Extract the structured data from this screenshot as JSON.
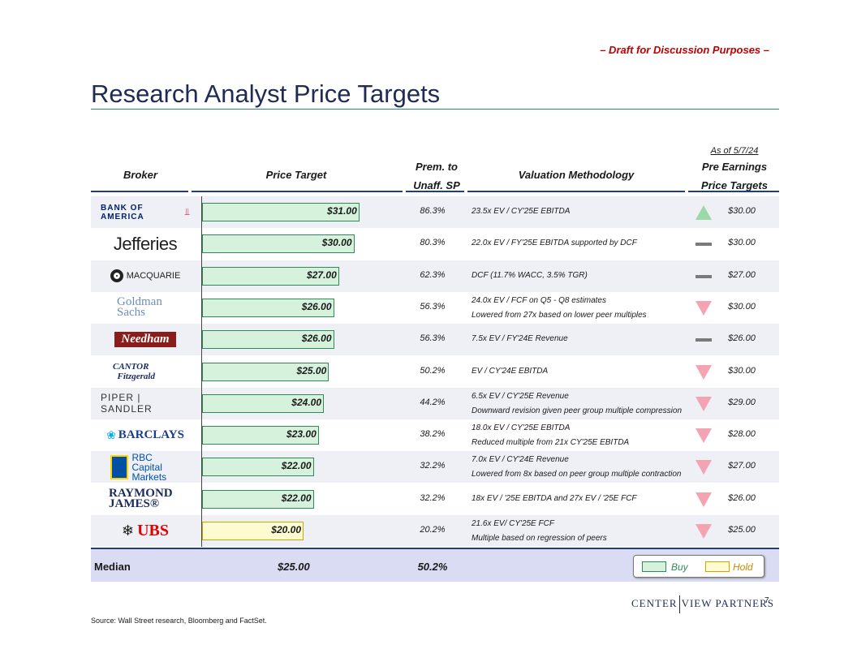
{
  "draft_note": "– Draft for Discussion Purposes –",
  "title": "Research Analyst Price Targets",
  "as_of": "As of 5/7/24",
  "headers": {
    "broker": "Broker",
    "price_target": "Price Target",
    "prem_line1": "Prem. to",
    "prem_line2": "Unaff. SP",
    "methodology": "Valuation Methodology",
    "pre_line1": "Pre Earnings",
    "pre_line2": "Price Targets"
  },
  "colors": {
    "buy_fill": "#d6f2dd",
    "buy_border": "#2e8b57",
    "hold_fill": "#fffbd1",
    "hold_border": "#c9a800",
    "up": "#9bd9a8",
    "down": "#f4a3b3",
    "flat": "#7a7a7a"
  },
  "rows": [
    {
      "broker": "BANK OF AMERICA",
      "target": "$31.00",
      "target_value": 31,
      "rating": "buy",
      "prem": "86.3%",
      "meth1": "23.5x EV / CY'25E EBITDA",
      "meth2": "",
      "change": "up",
      "pre": "$30.00"
    },
    {
      "broker": "Jefferies",
      "target": "$30.00",
      "target_value": 30,
      "rating": "buy",
      "prem": "80.3%",
      "meth1": "22.0x EV / FY'25E EBITDA supported by DCF",
      "meth2": "",
      "change": "flat",
      "pre": "$30.00"
    },
    {
      "broker": "MACQUARIE",
      "target": "$27.00",
      "target_value": 27,
      "rating": "buy",
      "prem": "62.3%",
      "meth1": "DCF (11.7% WACC, 3.5% TGR)",
      "meth2": "",
      "change": "flat",
      "pre": "$27.00"
    },
    {
      "broker": "Goldman Sachs",
      "target": "$26.00",
      "target_value": 26,
      "rating": "buy",
      "prem": "56.3%",
      "meth1": "24.0x EV / FCF on Q5 - Q8 estimates",
      "meth2": "Lowered from 27x based on lower peer multiples",
      "change": "down",
      "pre": "$30.00"
    },
    {
      "broker": "Needham",
      "target": "$26.00",
      "target_value": 26,
      "rating": "buy",
      "prem": "56.3%",
      "meth1": "7.5x EV / FY'24E Revenue",
      "meth2": "",
      "change": "flat",
      "pre": "$26.00"
    },
    {
      "broker": "CANTOR Fitzgerald",
      "target": "$25.00",
      "target_value": 25,
      "rating": "buy",
      "prem": "50.2%",
      "meth1": "EV / CY'24E EBITDA",
      "meth2": "",
      "change": "down",
      "pre": "$30.00"
    },
    {
      "broker": "PIPER | SANDLER",
      "target": "$24.00",
      "target_value": 24,
      "rating": "buy",
      "prem": "44.2%",
      "meth1": "6.5x EV / CY'25E Revenue",
      "meth2": "Downward revision given peer group multiple compression",
      "change": "down",
      "pre": "$29.00"
    },
    {
      "broker": "BARCLAYS",
      "target": "$23.00",
      "target_value": 23,
      "rating": "buy",
      "prem": "38.2%",
      "meth1": "18.0x EV / CY'25E EBITDA",
      "meth2": "Reduced multiple from 21x CY'25E EBITDA",
      "change": "down",
      "pre": "$28.00"
    },
    {
      "broker": "RBC Capital Markets",
      "target": "$22.00",
      "target_value": 22,
      "rating": "buy",
      "prem": "32.2%",
      "meth1": "7.0x EV / CY'24E Revenue",
      "meth2": "Lowered from 8x based on peer group multiple contraction",
      "change": "down",
      "pre": "$27.00"
    },
    {
      "broker": "RAYMOND JAMES®",
      "target": "$22.00",
      "target_value": 22,
      "rating": "buy",
      "prem": "32.2%",
      "meth1": "18x EV / '25E EBITDA and 27x EV / '25E FCF",
      "meth2": "",
      "change": "down",
      "pre": "$26.00"
    },
    {
      "broker": "UBS",
      "target": "$20.00",
      "target_value": 20,
      "rating": "hold",
      "prem": "20.2%",
      "meth1": "21.6x EV/ CY'25E FCF",
      "meth2": "Multiple based on regression of peers",
      "change": "down",
      "pre": "$25.00"
    }
  ],
  "median": {
    "label": "Median",
    "target": "$25.00",
    "prem": "50.2%"
  },
  "legend": {
    "buy": "Buy",
    "hold": "Hold"
  },
  "footer": {
    "source": "Source:    Wall Street research, Bloomberg and FactSet.",
    "page": "7",
    "brand_left": "CENTER",
    "brand_right": "VIEW PARTNERS"
  }
}
